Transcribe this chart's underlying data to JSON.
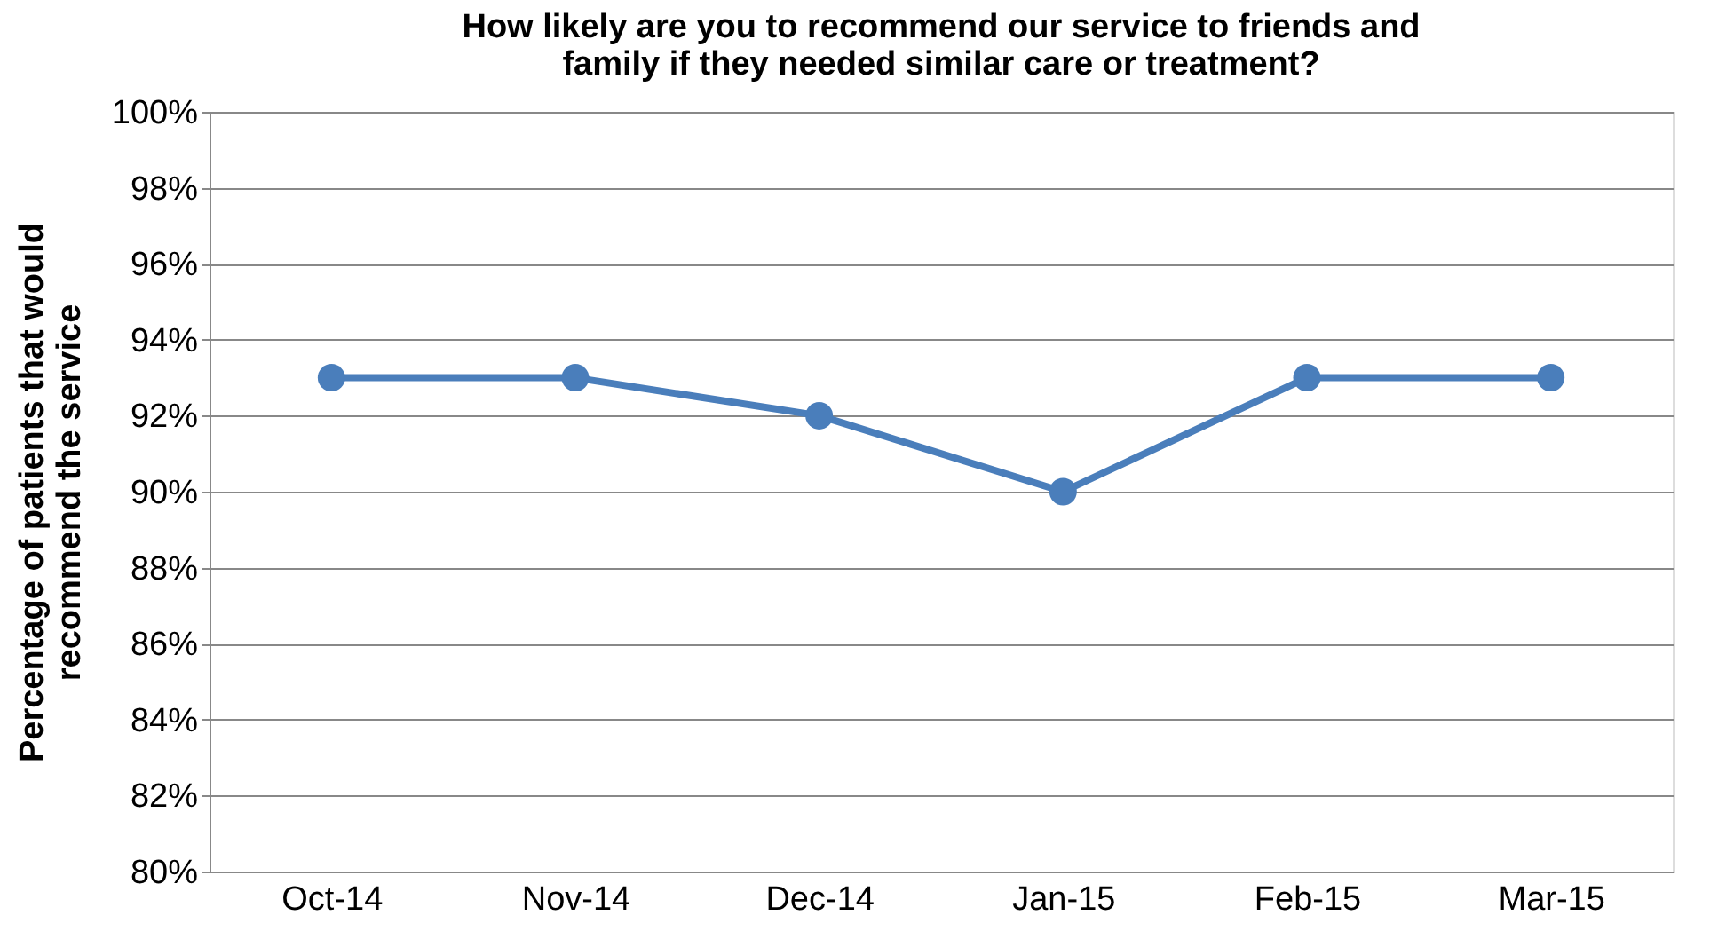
{
  "chart_data": {
    "type": "line",
    "title": "How likely are you to recommend our service to friends and\nfamily if they needed similar care or treatment?",
    "ylabel": "Percentage of patients that would\nrecommend the service",
    "categories": [
      "Oct-14",
      "Nov-14",
      "Dec-14",
      "Jan-15",
      "Feb-15",
      "Mar-15"
    ],
    "series": [
      {
        "color": "#4a7ebb",
        "values": [
          93,
          93,
          92,
          90,
          93,
          93
        ]
      }
    ],
    "ylim": [
      80,
      100
    ],
    "yticks": [
      {
        "value": 80,
        "label": "80%"
      },
      {
        "value": 82,
        "label": "82%"
      },
      {
        "value": 84,
        "label": "84%"
      },
      {
        "value": 86,
        "label": "86%"
      },
      {
        "value": 88,
        "label": "88%"
      },
      {
        "value": 90,
        "label": "90%"
      },
      {
        "value": 92,
        "label": "92%"
      },
      {
        "value": 94,
        "label": "94%"
      },
      {
        "value": 96,
        "label": "96%"
      },
      {
        "value": 98,
        "label": "98%"
      },
      {
        "value": 100,
        "label": "100%"
      }
    ],
    "grid": "y",
    "marker": "circle",
    "line_style": "solid"
  }
}
